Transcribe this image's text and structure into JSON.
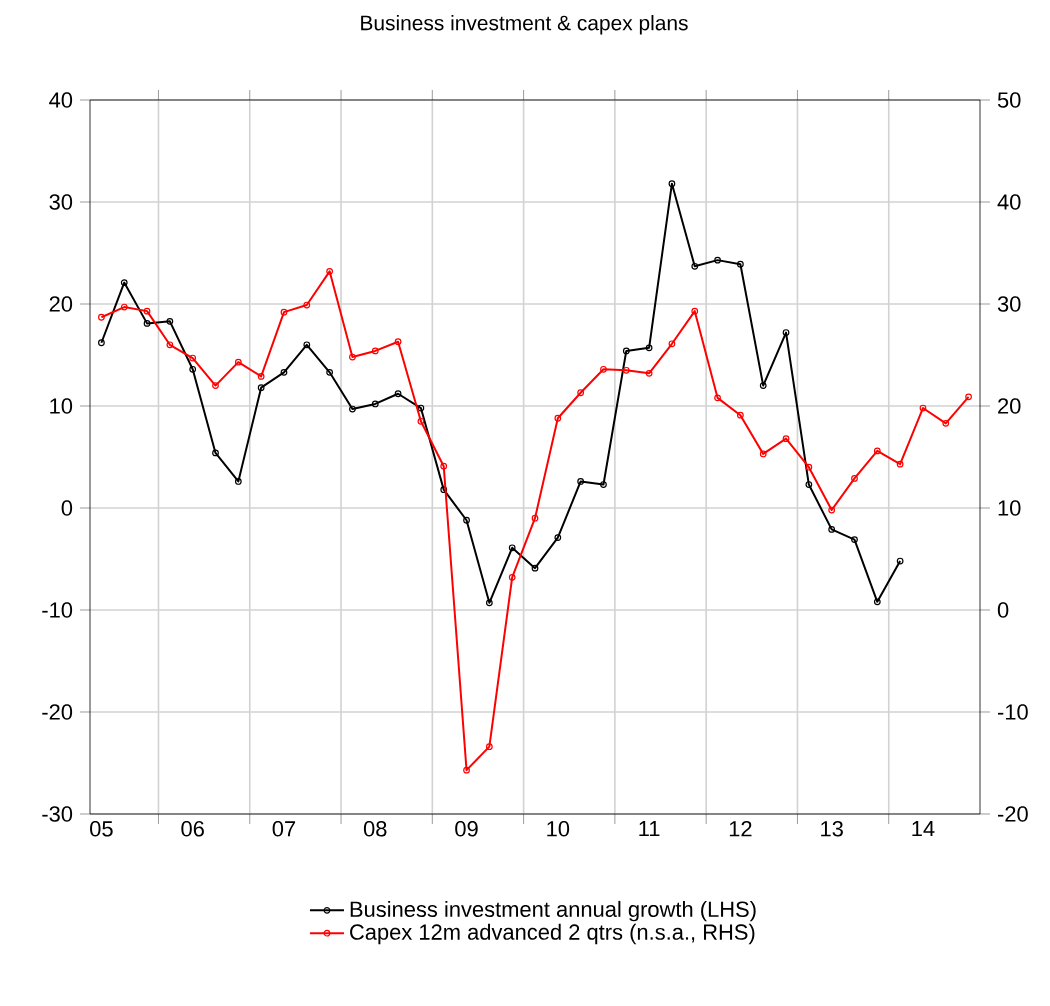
{
  "chart_data": {
    "type": "line",
    "title": "Business investment & capex plans",
    "categories": [
      "05",
      null,
      null,
      null,
      "06",
      null,
      null,
      null,
      "07",
      null,
      null,
      null,
      "08",
      null,
      null,
      null,
      "09",
      null,
      null,
      null,
      "10",
      null,
      null,
      null,
      "11",
      null,
      null,
      null,
      "12",
      null,
      null,
      null,
      "13",
      null,
      null,
      null,
      "14",
      null,
      null
    ],
    "series": [
      {
        "name": "Business investment annual growth (LHS)",
        "color": "#000000",
        "values": [
          16.2,
          22.1,
          18.1,
          18.3,
          13.6,
          5.4,
          2.6,
          11.8,
          13.3,
          16.0,
          13.3,
          9.7,
          10.2,
          11.2,
          9.8,
          1.8,
          -1.2,
          -9.3,
          -3.9,
          -5.9,
          -2.9,
          2.6,
          2.3,
          15.4,
          15.7,
          31.8,
          23.7,
          24.3,
          23.9,
          12.0,
          17.2,
          2.3,
          -2.1,
          -3.1,
          -9.2,
          -5.2,
          null,
          null,
          null
        ]
      },
      {
        "name": "Capex 12m advanced 2 qtrs  (n.s.a., RHS)",
        "color": "#ff0000",
        "axis": "y2",
        "values": [
          28.7,
          29.7,
          29.3,
          26.0,
          24.7,
          22.0,
          24.3,
          22.9,
          29.2,
          29.9,
          33.2,
          24.8,
          25.4,
          26.3,
          18.5,
          14.1,
          -15.7,
          -13.4,
          3.2,
          9.0,
          18.8,
          21.3,
          23.6,
          23.5,
          23.2,
          26.1,
          29.3,
          20.8,
          19.1,
          15.3,
          16.8,
          14.0,
          9.8,
          12.9,
          15.6,
          14.3,
          19.8,
          18.3,
          20.9
        ]
      }
    ],
    "ylim": [
      -30,
      40
    ],
    "yticks": [
      -30,
      -20,
      -10,
      0,
      10,
      20,
      30,
      40
    ],
    "y2lim": [
      -20,
      50
    ],
    "y2ticks": [
      -20,
      -10,
      0,
      10,
      20,
      30,
      40,
      50
    ],
    "grid": true,
    "legend": "bottom",
    "marker": "circle",
    "line_style": "solid"
  }
}
